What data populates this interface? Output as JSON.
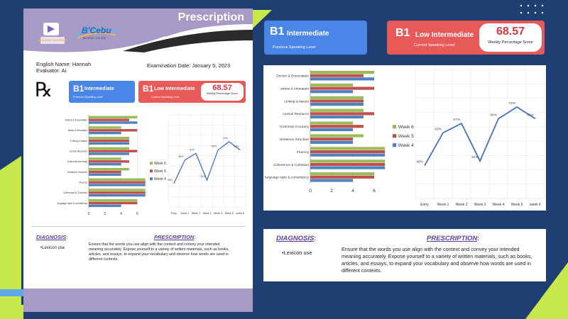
{
  "colors": {
    "background": "#1f3f73",
    "accent_green": "#c7e84a",
    "accent_purple": "#a79ac7",
    "card_blue": "#4a86e8",
    "card_red": "#e85a5a",
    "score_red": "#d9363e",
    "week6": "#9bbb59",
    "week5": "#c0504d",
    "week4": "#4f81bd",
    "line": "#4472c4"
  },
  "document": {
    "title": "Prescription",
    "logo_text": "B'Cebu",
    "logo_tagline": "BE WHAT YOU ARE",
    "logo_left_text": "READING PROGRAM",
    "student_label": "English Name: Hannah",
    "evaluator_label": "Evaluator: Ai",
    "exam_date": "Examination Date: January 5, 2023",
    "rx_symbol": "℞"
  },
  "cards": {
    "previous": {
      "level": "B1",
      "name": "Intermediate",
      "caption": "Previous Speaking Level"
    },
    "current": {
      "level": "B1",
      "name": "Low Intermediate",
      "caption": "Current Speaking Level"
    },
    "score": {
      "value": "68.57",
      "caption": "Weekly Percentage Score"
    }
  },
  "diagnosis": {
    "title": "DIAGNOSIS",
    "colon": ":",
    "item": "•Lexicon use"
  },
  "prescription": {
    "title": "PRESCRIPTION",
    "colon": ":",
    "text": "Ensure that the words you use align with the context and convey your intended meaning accurately. Expose yourself to a variety of written materials, such as books, articles, and essays, to expand your vocabulary and observe how words are used in different contexts."
  },
  "chart_data": [
    {
      "type": "bar",
      "orientation": "horizontal",
      "categories": [
        "Diction & Enunciation",
        "stress & Intonation",
        "Linking & liaison",
        "Lexical Resource",
        "Grammar Accuracy",
        "Sentence Structure",
        "Fluency",
        "Coherence & Cohesion",
        "language style & consistency"
      ],
      "series": [
        {
          "name": "Week 6",
          "values": [
            6,
            4,
            5,
            5,
            4,
            5,
            7,
            7,
            6
          ]
        },
        {
          "name": "Week 5",
          "values": [
            5,
            6,
            5,
            6,
            5,
            4,
            7,
            7,
            6
          ]
        },
        {
          "name": "Week 4",
          "values": [
            6,
            4,
            5,
            5,
            4,
            4,
            7,
            7,
            4
          ]
        }
      ],
      "xticks": [
        "0",
        "2",
        "4",
        "6"
      ],
      "xlim": [
        0,
        7.2
      ],
      "legend": "right"
    },
    {
      "type": "line",
      "categories": [
        "Entry",
        "Week 1",
        "Week 2",
        "Week 3",
        "Week 4",
        "Week 5",
        "week 6"
      ],
      "values": [
        49,
        63,
        67,
        51,
        69,
        74,
        69
      ],
      "labels": [
        "49%",
        "63%",
        "67%",
        "51%",
        "69%",
        "74%",
        "69%"
      ],
      "ylim": [
        35,
        90
      ],
      "grid": true
    }
  ]
}
